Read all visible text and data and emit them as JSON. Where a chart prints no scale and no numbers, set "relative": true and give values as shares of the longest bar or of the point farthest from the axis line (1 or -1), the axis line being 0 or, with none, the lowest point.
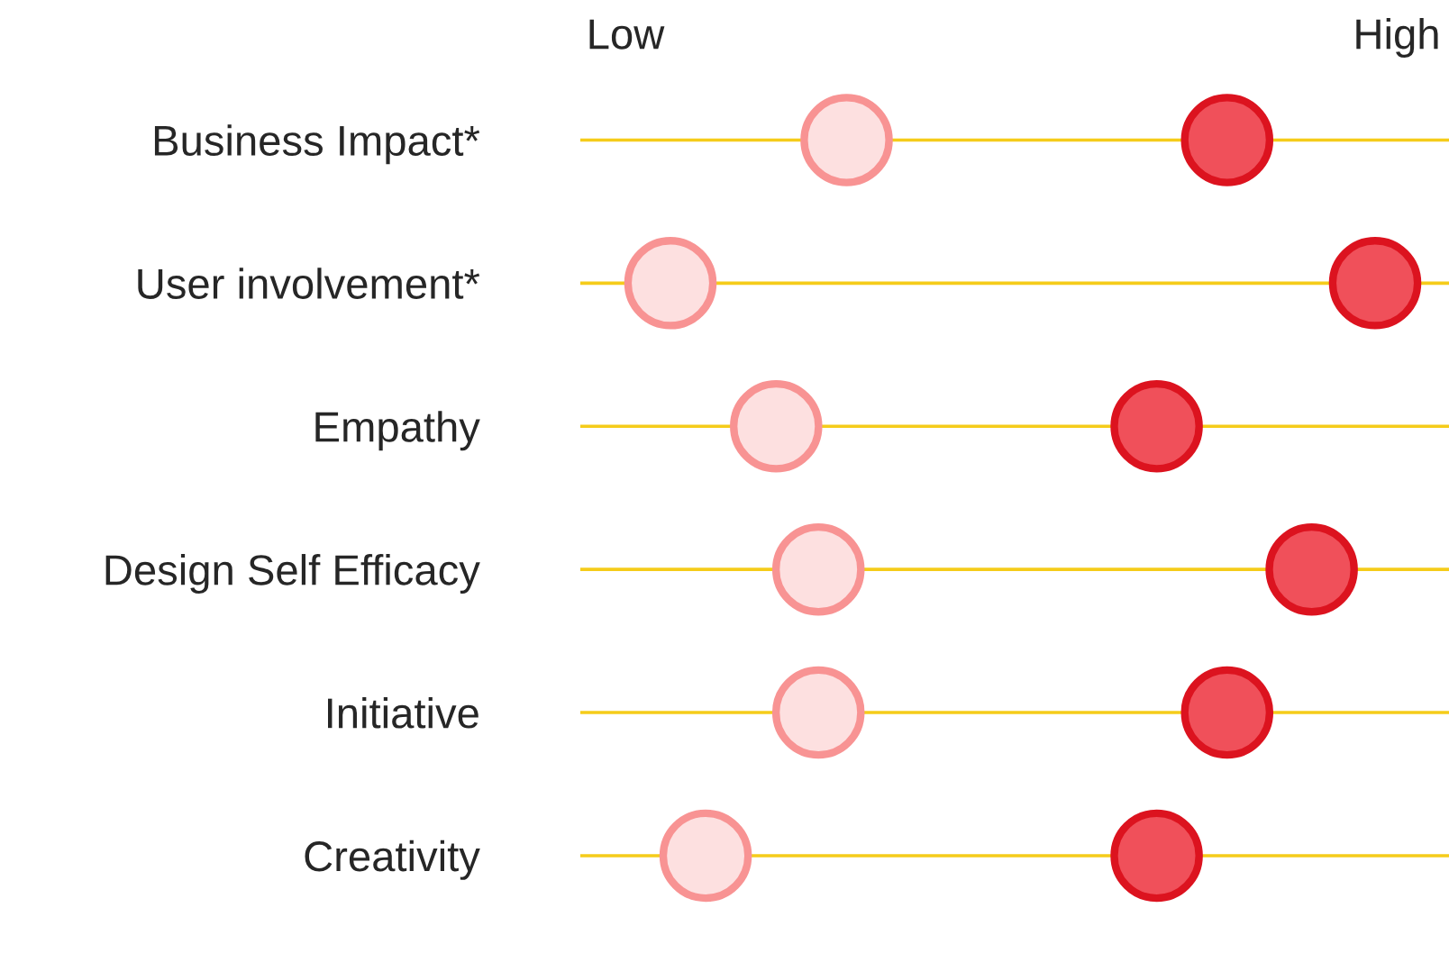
{
  "chart_data": {
    "type": "scatter",
    "orientation": "horizontal",
    "relative": true,
    "categories": [
      "Business Impact*",
      "User involvement*",
      "Empathy",
      "Design Self Efficacy",
      "Initiative",
      "Creativity"
    ],
    "series": [
      {
        "color": "#fde0e0",
        "values": [
          0.25,
          0.0,
          0.15,
          0.21,
          0.21,
          0.05
        ]
      },
      {
        "color": "#f0505a",
        "values": [
          0.79,
          1.0,
          0.69,
          0.91,
          0.79,
          0.69
        ]
      }
    ],
    "annotations": [
      "Low",
      "High"
    ],
    "grid": "y",
    "marker": "circle"
  }
}
